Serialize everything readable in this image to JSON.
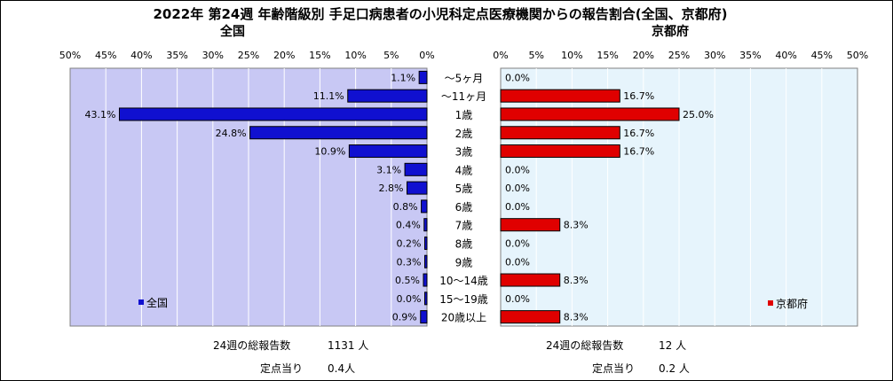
{
  "title": "2022年 第24週  年齢階級別 手足口病患者の小児科定点医療機関からの報告割合(全国、京都府)",
  "colors": {
    "zenkoku": "#1010d0",
    "kyoto": "#e00000",
    "plot_bg": "#c8c8f4",
    "plot_bg_right": "#e6f4fc"
  },
  "categories": [
    "～5ヶ月",
    "～11ヶ月",
    "1歳",
    "2歳",
    "3歳",
    "4歳",
    "5歳",
    "6歳",
    "7歳",
    "8歳",
    "9歳",
    "10～14歳",
    "15～19歳",
    "20歳以上"
  ],
  "chart_data": [
    {
      "type": "bar",
      "orientation": "horizontal",
      "subtitle": "全国",
      "legend": "全国",
      "legend_position": "bottom-left",
      "xlim": [
        0,
        50
      ],
      "x_reversed": true,
      "ticks": [
        "50%",
        "45%",
        "40%",
        "35%",
        "30%",
        "25%",
        "20%",
        "15%",
        "10%",
        "5%",
        "0%"
      ],
      "grid": true,
      "values": [
        1.1,
        11.1,
        43.1,
        24.8,
        10.9,
        3.1,
        2.8,
        0.8,
        0.4,
        0.2,
        0.3,
        0.5,
        0.0,
        0.9
      ],
      "labels": [
        "1.1%",
        "11.1%",
        "43.1%",
        "24.8%",
        "10.9%",
        "3.1%",
        "2.8%",
        "0.8%",
        "0.4%",
        "0.2%",
        "0.3%",
        "0.5%",
        "0.0%",
        "0.9%"
      ],
      "total_label": "24週の総報告数",
      "total_value": "1131 人",
      "per_label": "定点当り",
      "per_value": "0.4人"
    },
    {
      "type": "bar",
      "orientation": "horizontal",
      "subtitle": "京都府",
      "legend": "京都府",
      "legend_position": "bottom-right",
      "xlim": [
        0,
        50
      ],
      "ticks": [
        "0%",
        "5%",
        "10%",
        "15%",
        "20%",
        "25%",
        "30%",
        "35%",
        "40%",
        "45%",
        "50%"
      ],
      "grid": true,
      "values": [
        0.0,
        16.7,
        25.0,
        16.7,
        16.7,
        0.0,
        0.0,
        0.0,
        8.3,
        0.0,
        0.0,
        8.3,
        0.0,
        8.3
      ],
      "labels": [
        "0.0%",
        "16.7%",
        "25.0%",
        "16.7%",
        "16.7%",
        "0.0%",
        "0.0%",
        "0.0%",
        "8.3%",
        "0.0%",
        "0.0%",
        "8.3%",
        "0.0%",
        "8.3%"
      ],
      "total_label": "24週の総報告数",
      "total_value": "12 人",
      "per_label": "定点当り",
      "per_value": "0.2 人"
    }
  ]
}
